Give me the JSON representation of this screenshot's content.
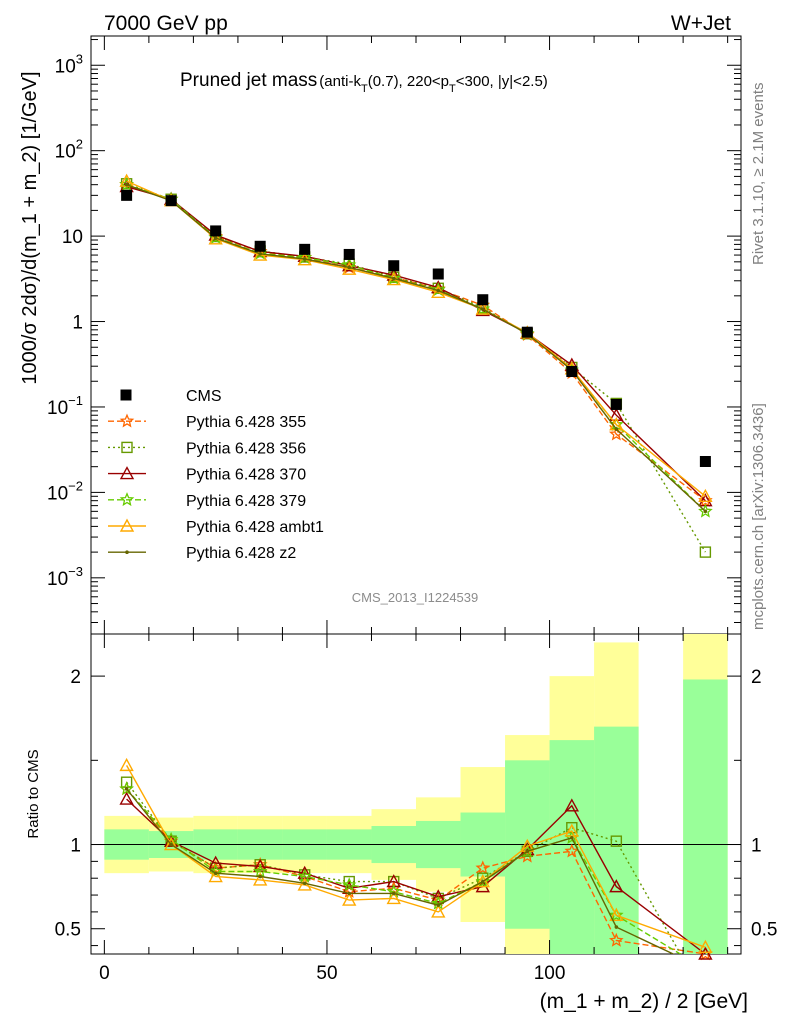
{
  "header": {
    "left": "7000 GeV pp",
    "right": "W+Jet"
  },
  "plot_title": {
    "main": "Pruned jet mass",
    "cuts": "(anti-k_T(0.7), 220<p_T<300, |y|<2.5)"
  },
  "side_labels": {
    "version": "Rivet 3.1.10, ≥ 2.1M events",
    "source": "mcplots.cern.ch [arXiv:1306.3436]"
  },
  "analysis_id": "CMS_2013_I1224539",
  "colors": {
    "data": "#000000",
    "band_inner": "#99ff99",
    "band_outer": "#ffff99"
  },
  "chart_data": [
    {
      "panel": "main",
      "type": "line",
      "ylabel": "1000/σ 2dσ)/d(m_1 + m_2) [1/GeV]",
      "yscale": "log",
      "ylim": [
        0.00022,
        2200
      ],
      "xlim": [
        -3,
        143
      ],
      "yticks": [
        {
          "v": 0.001,
          "b": "10",
          "e": "−3"
        },
        {
          "v": 0.01,
          "b": "10",
          "e": "−2"
        },
        {
          "v": 0.1,
          "b": "10",
          "e": "−1"
        },
        {
          "v": 1,
          "b": "1",
          "e": ""
        },
        {
          "v": 10,
          "b": "10",
          "e": ""
        },
        {
          "v": 100,
          "b": "10",
          "e": "2"
        },
        {
          "v": 1000,
          "b": "10",
          "e": "3"
        }
      ],
      "x": [
        5,
        15,
        25,
        35,
        45,
        55,
        65,
        75,
        85,
        95,
        105,
        115,
        135
      ],
      "data": {
        "name": "CMS",
        "values": [
          30,
          26,
          11.5,
          7.6,
          7.0,
          6.1,
          4.5,
          3.6,
          1.8,
          0.75,
          0.26,
          0.107,
          0.023
        ]
      },
      "series": [
        {
          "name": "Pythia 6.428 355",
          "color": "#ff6600",
          "dash": "6,3",
          "marker": "star",
          "values": [
            40,
            27,
            9.9,
            6.6,
            5.6,
            4.3,
            3.3,
            2.4,
            1.55,
            0.7,
            0.25,
            0.048,
            0.008
          ]
        },
        {
          "name": "Pythia 6.428 356",
          "color": "#669900",
          "dash": "2,3",
          "marker": "square-open",
          "values": [
            41,
            27,
            9.9,
            6.7,
            5.7,
            4.7,
            3.3,
            2.45,
            1.45,
            0.72,
            0.29,
            0.11,
            0.002
          ]
        },
        {
          "name": "Pythia 6.428 370",
          "color": "#990000",
          "dash": "",
          "marker": "triangle-open",
          "values": [
            38,
            27,
            10.3,
            6.6,
            5.8,
            4.5,
            3.5,
            2.5,
            1.35,
            0.73,
            0.31,
            0.08,
            0.008
          ]
        },
        {
          "name": "Pythia 6.428 379",
          "color": "#66cc00",
          "dash": "6,3",
          "marker": "star",
          "values": [
            40,
            27,
            9.6,
            6.3,
            5.6,
            4.6,
            3.2,
            2.35,
            1.4,
            0.72,
            0.27,
            0.062,
            0.006
          ]
        },
        {
          "name": "Pythia 6.428 ambt1",
          "color": "#ffaa00",
          "dash": "",
          "marker": "triangle-open",
          "values": [
            44,
            26,
            9.3,
            6.0,
            5.3,
            4.1,
            3.1,
            2.2,
            1.4,
            0.74,
            0.28,
            0.062,
            0.009
          ]
        },
        {
          "name": "Pythia 6.428 z2",
          "color": "#666600",
          "dash": "",
          "marker": "dot",
          "values": [
            40,
            26,
            9.5,
            6.2,
            5.4,
            4.3,
            3.2,
            2.3,
            1.4,
            0.72,
            0.27,
            0.055,
            0.006
          ]
        }
      ]
    },
    {
      "panel": "ratio",
      "type": "line",
      "ylabel": "Ratio to CMS",
      "ylim": [
        0.35,
        2.25
      ],
      "xlim": [
        -3,
        143
      ],
      "xlabel": "(m_1 + m_2) / 2 [GeV]",
      "xticks": [
        0,
        50,
        100
      ],
      "yticks": [
        0.5,
        1,
        2
      ],
      "band_edges": [
        0,
        10,
        20,
        30,
        40,
        50,
        60,
        70,
        80,
        90,
        100,
        110,
        120,
        130,
        140
      ],
      "band_inner": [
        [
          0.91,
          1.09
        ],
        [
          0.92,
          1.08
        ],
        [
          0.91,
          1.09
        ],
        [
          0.91,
          1.09
        ],
        [
          0.91,
          1.09
        ],
        [
          0.91,
          1.09
        ],
        [
          0.89,
          1.11
        ],
        [
          0.86,
          1.14
        ],
        [
          0.81,
          1.19
        ],
        [
          0.5,
          1.5
        ],
        [
          0.35,
          1.62
        ],
        [
          0.35,
          1.7
        ],
        null,
        [
          0.35,
          1.98
        ]
      ],
      "band_outer": [
        [
          0.83,
          1.17
        ],
        [
          0.84,
          1.16
        ],
        [
          0.83,
          1.17
        ],
        [
          0.83,
          1.17
        ],
        [
          0.83,
          1.17
        ],
        [
          0.83,
          1.17
        ],
        [
          0.79,
          1.21
        ],
        [
          0.72,
          1.28
        ],
        [
          0.54,
          1.46
        ],
        [
          0.35,
          1.65
        ],
        [
          0.35,
          2.0
        ],
        [
          0.35,
          2.2
        ],
        null,
        [
          0.35,
          2.3
        ]
      ],
      "x": [
        5,
        15,
        25,
        35,
        45,
        55,
        65,
        75,
        85,
        95,
        105,
        115,
        135
      ],
      "series": [
        {
          "name": "Pythia 6.428 355",
          "values": [
            1.33,
            1.02,
            0.86,
            0.88,
            0.81,
            0.72,
            0.74,
            0.67,
            0.86,
            0.93,
            0.96,
            0.43,
            0.35
          ]
        },
        {
          "name": "Pythia 6.428 356",
          "values": [
            1.37,
            1.02,
            0.86,
            0.88,
            0.82,
            0.78,
            0.78,
            0.68,
            0.8,
            0.96,
            1.1,
            1.02,
            0.09
          ]
        },
        {
          "name": "Pythia 6.428 370",
          "values": [
            1.27,
            1.02,
            0.89,
            0.87,
            0.83,
            0.74,
            0.78,
            0.69,
            0.75,
            0.97,
            1.23,
            0.75,
            0.35
          ]
        },
        {
          "name": "Pythia 6.428 379",
          "values": [
            1.33,
            1.03,
            0.84,
            0.84,
            0.81,
            0.76,
            0.72,
            0.65,
            0.78,
            0.96,
            1.04,
            0.58,
            0.26
          ]
        },
        {
          "name": "Pythia 6.428 ambt1",
          "values": [
            1.47,
            1.0,
            0.81,
            0.79,
            0.76,
            0.67,
            0.68,
            0.6,
            0.78,
            0.99,
            1.08,
            0.58,
            0.39
          ]
        },
        {
          "name": "Pythia 6.428 z2",
          "values": [
            1.33,
            1.0,
            0.83,
            0.81,
            0.77,
            0.71,
            0.71,
            0.64,
            0.78,
            0.96,
            1.04,
            0.51,
            0.26
          ]
        }
      ]
    }
  ]
}
